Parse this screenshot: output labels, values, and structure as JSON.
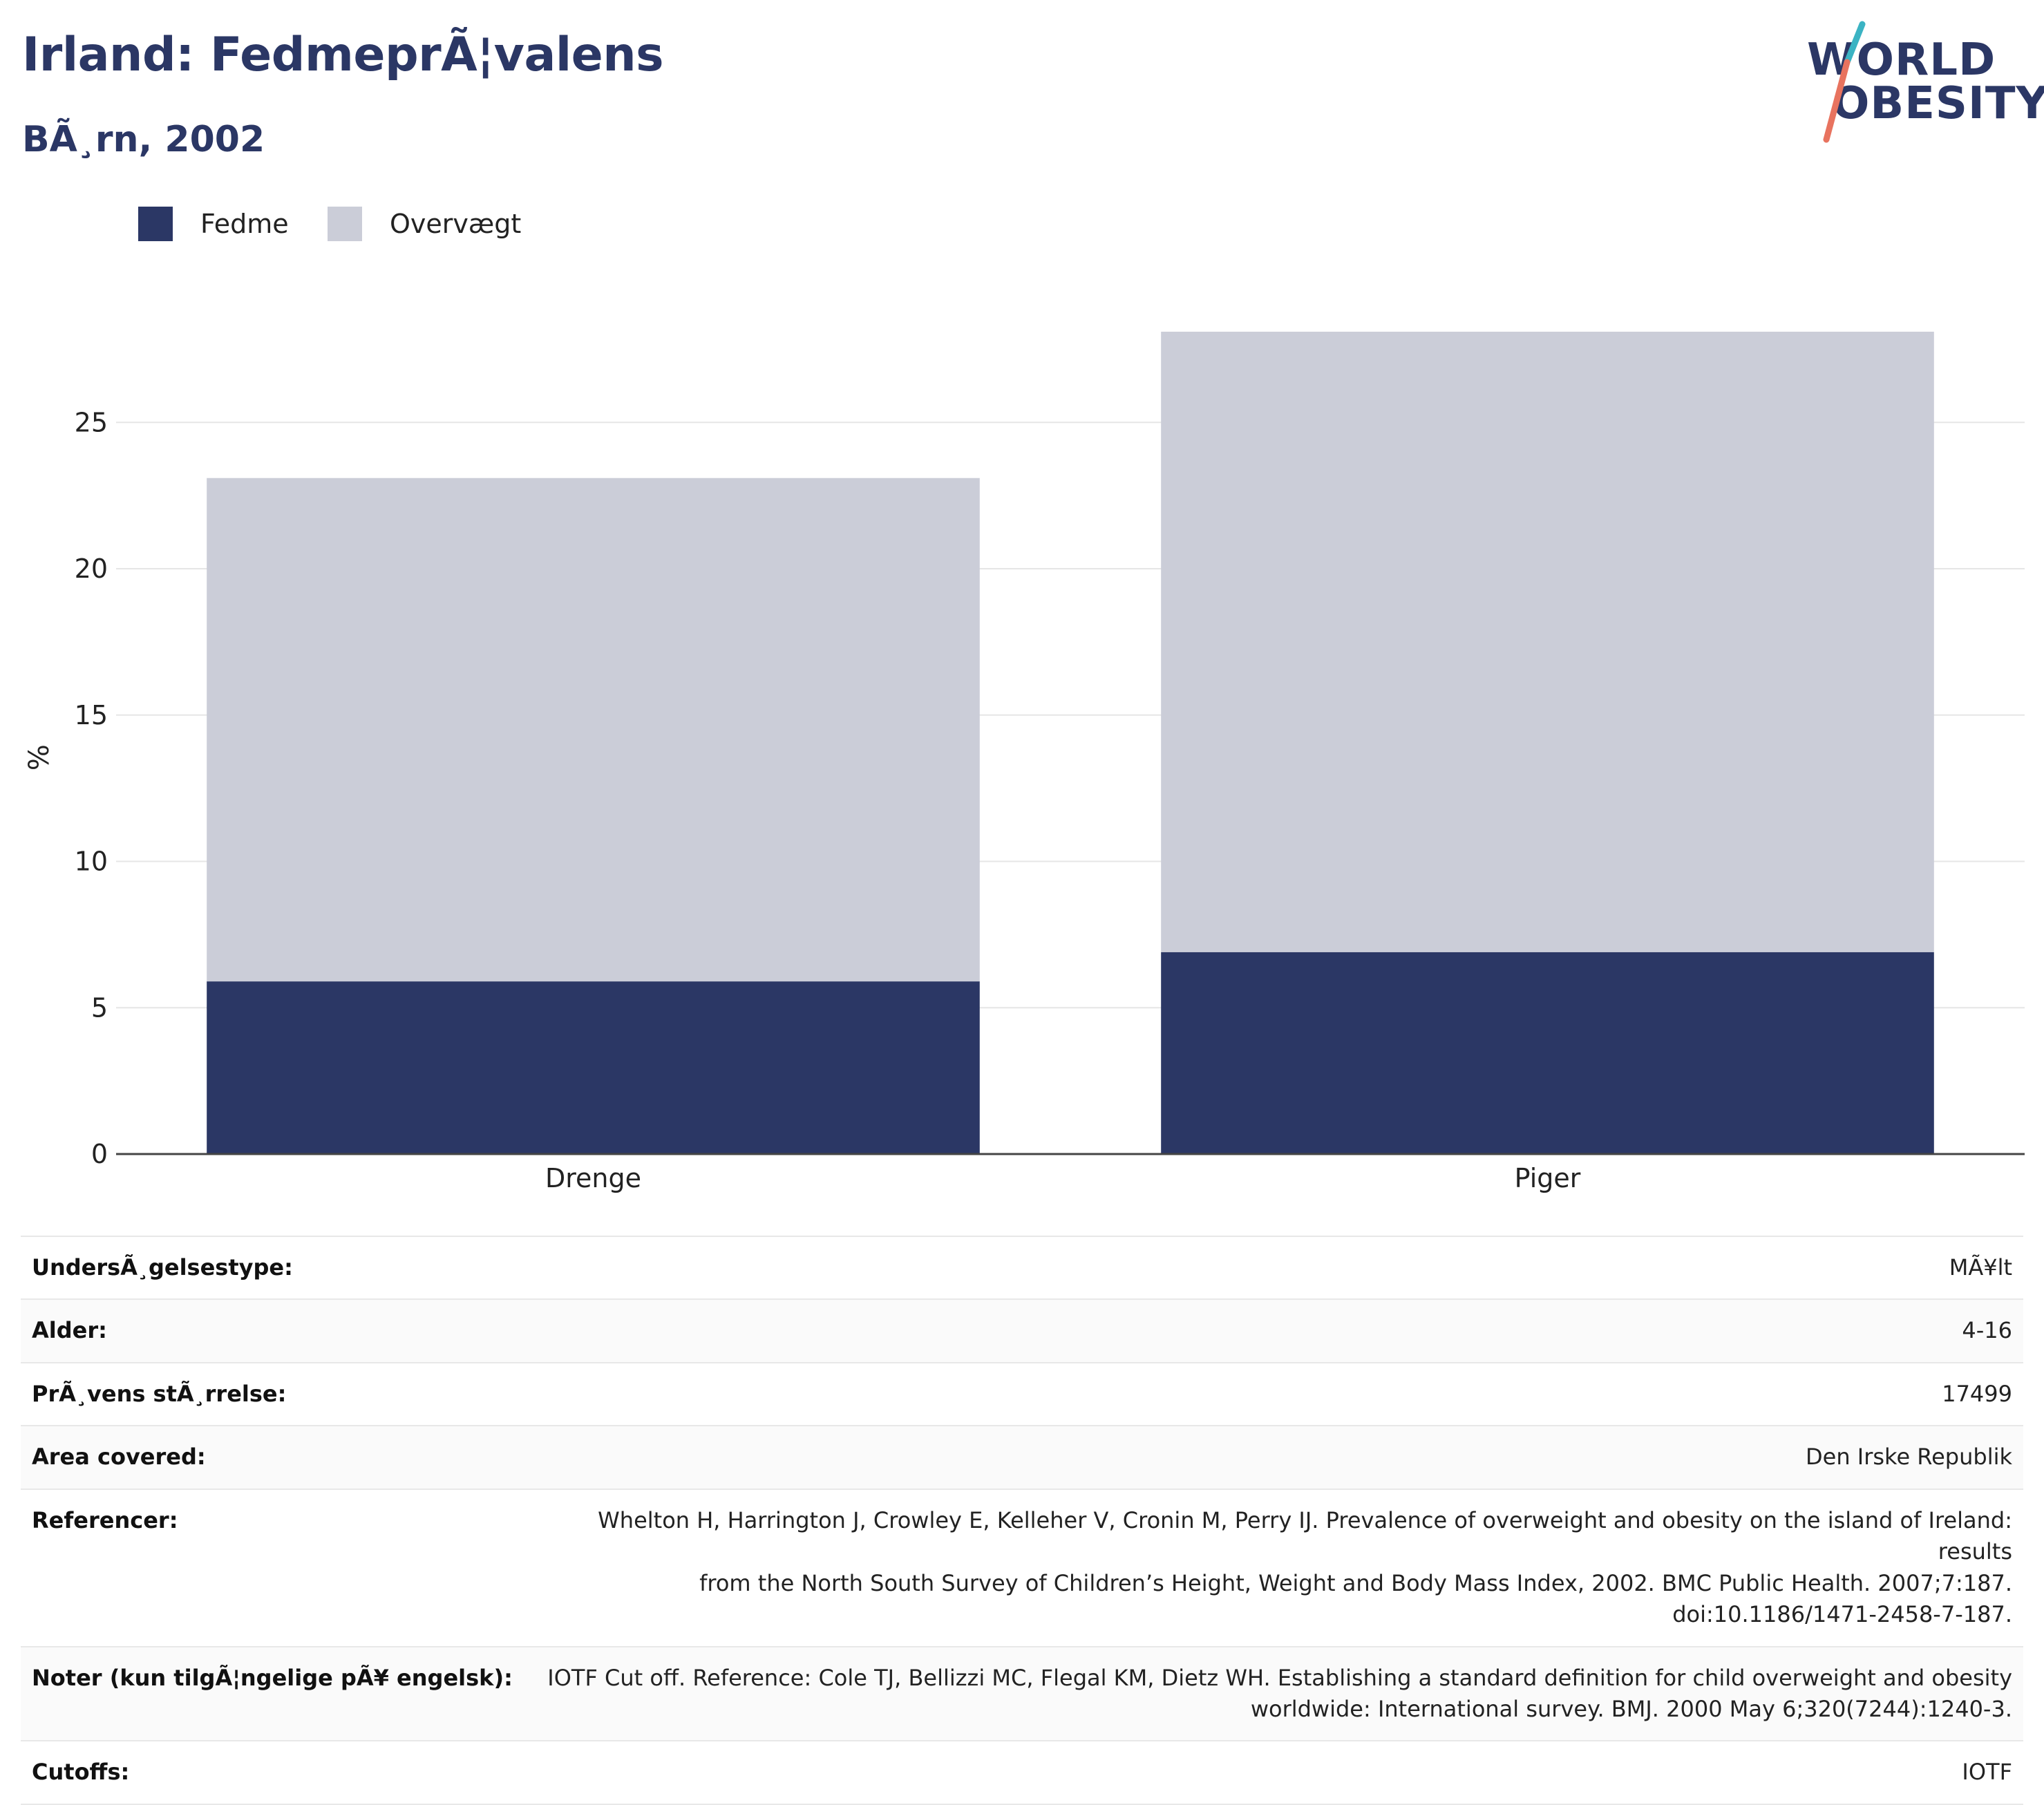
{
  "header": {
    "title": "Irland: FedmeprÃ¦valens",
    "subtitle": "BÃ¸rn, 2002"
  },
  "logo": {
    "line1": "WORLD",
    "line2": "OBESITY",
    "accent_colors": [
      "#3bb3c3",
      "#e8735f"
    ],
    "text_color": "#2b3765"
  },
  "colors": {
    "fedme": "#2b3765",
    "overvaegt": "#cbcdd8",
    "gridline": "#e6e6e6",
    "axis": "#444444"
  },
  "legend": {
    "items": [
      {
        "label": "Fedme",
        "color": "#2b3765"
      },
      {
        "label": "Overvægt",
        "color": "#cbcdd8"
      }
    ]
  },
  "chart_data": {
    "type": "bar",
    "stacked": true,
    "categories": [
      "Drenge",
      "Piger"
    ],
    "series": [
      {
        "name": "Fedme",
        "values": [
          5.9,
          6.9
        ],
        "color": "#2b3765"
      },
      {
        "name": "Overvægt",
        "values": [
          17.2,
          21.2
        ],
        "color": "#cbcdd8"
      }
    ],
    "ylabel": "%",
    "xlabel": "",
    "ylim": [
      0,
      28.1
    ],
    "yticks": [
      0,
      5,
      10,
      15,
      20,
      25
    ],
    "grid": true,
    "legend_position": "top-left"
  },
  "info": {
    "rows": [
      {
        "key": "UndersÃ¸gelsestype:",
        "lines": [
          "MÃ¥lt"
        ]
      },
      {
        "key": "Alder:",
        "lines": [
          "4-16"
        ]
      },
      {
        "key": "PrÃ¸vens stÃ¸rrelse:",
        "lines": [
          "17499"
        ]
      },
      {
        "key": "Area covered:",
        "lines": [
          "Den Irske Republik"
        ]
      },
      {
        "key": "Referencer:",
        "lines": [
          "Whelton H, Harrington J, Crowley E, Kelleher V, Cronin M, Perry IJ. Prevalence of overweight and obesity on the island of Ireland: results",
          "from the North South Survey of Children’s Height, Weight and Body Mass Index, 2002. BMC Public Health. 2007;7:187.",
          "doi:10.1186/1471-2458-7-187."
        ]
      },
      {
        "key": "Noter (kun tilgÃ¦ngelige pÃ¥ engelsk):",
        "lines": [
          "IOTF Cut off. Reference: Cole TJ, Bellizzi MC, Flegal KM, Dietz WH. Establishing a standard definition for child overweight and obesity",
          "worldwide: International survey. BMJ. 2000 May 6;320(7244):1240-3."
        ]
      },
      {
        "key": "Cutoffs:",
        "lines": [
          "IOTF"
        ]
      }
    ]
  }
}
